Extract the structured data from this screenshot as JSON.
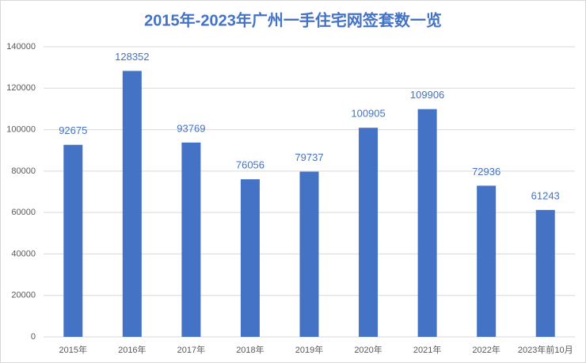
{
  "chart_data": {
    "type": "bar",
    "title": "2015年-2023年广州一手住宅网签套数一览",
    "categories": [
      "2015年",
      "2016年",
      "2017年",
      "2018年",
      "2019年",
      "2020年",
      "2021年",
      "2022年",
      "2023年前10月"
    ],
    "values": [
      92675,
      128352,
      93769,
      76056,
      79737,
      100905,
      109906,
      72936,
      61243
    ],
    "color": "#4472c4",
    "ylim": [
      0,
      140000
    ],
    "yticks": [
      0,
      20000,
      40000,
      60000,
      80000,
      100000,
      120000,
      140000
    ],
    "grid": true
  }
}
